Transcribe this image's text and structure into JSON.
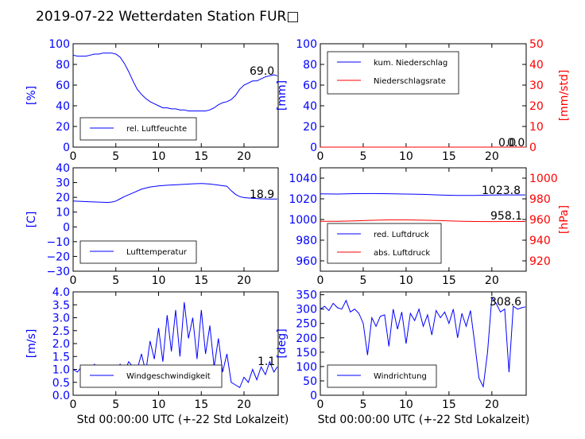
{
  "page": {
    "title": "2019-07-22 Wetterdaten Station FUR□"
  },
  "colors": {
    "left_axis": "#0000ff",
    "right_axis": "#ff0000",
    "series_blue": "#0000ff",
    "series_red": "#ff0000"
  },
  "chart_data": [
    {
      "type": "line",
      "ylabel": "[%]",
      "xlim": [
        0,
        24
      ],
      "ylim": [
        0,
        100
      ],
      "xticks": [
        "0",
        "5",
        "10",
        "15",
        "20"
      ],
      "yticks": [
        "0",
        "20",
        "40",
        "60",
        "80",
        "100"
      ],
      "legend": {
        "placement": "lower-left",
        "entries": [
          "rel. Luftfeuchte"
        ]
      },
      "value_label": "69.0",
      "series": [
        {
          "name": "rel. Luftfeuchte",
          "color": "#0000ff",
          "x": [
            0,
            0.5,
            1,
            1.5,
            2,
            2.5,
            3,
            3.5,
            4,
            4.5,
            5,
            5.5,
            6,
            6.5,
            7,
            7.5,
            8,
            8.5,
            9,
            9.5,
            10,
            10.5,
            11,
            11.5,
            12,
            12.5,
            13,
            13.5,
            14,
            14.5,
            15,
            15.5,
            16,
            16.5,
            17,
            17.5,
            18,
            18.5,
            19,
            19.5,
            20,
            20.5,
            21,
            21.5,
            22,
            22.5,
            23,
            23.5,
            23.9
          ],
          "y": [
            89,
            88,
            88,
            88,
            89,
            90,
            90,
            91,
            91,
            91,
            90,
            87,
            81,
            73,
            64,
            56,
            51,
            47,
            44,
            42,
            40,
            38,
            38,
            37,
            37,
            36,
            36,
            35,
            35,
            35,
            35,
            35,
            36,
            38,
            41,
            43,
            44,
            46,
            50,
            56,
            60,
            62,
            64,
            64,
            66,
            68,
            69,
            70,
            69
          ]
        }
      ]
    },
    {
      "type": "line",
      "ylabel": "[mm]",
      "ylabel_right": "[mm/std]",
      "xlim": [
        0,
        24
      ],
      "ylim": [
        0,
        100
      ],
      "ylim_right": [
        0,
        50
      ],
      "xticks": [
        "0",
        "5",
        "10",
        "15",
        "20"
      ],
      "yticks": [
        "0",
        "20",
        "40",
        "60",
        "80",
        "100"
      ],
      "yticks_right": [
        "0",
        "10",
        "20",
        "30",
        "40",
        "50"
      ],
      "legend": {
        "placement": "upper-left",
        "entries": [
          "kum. Niederschlag",
          "Niederschlagsrate"
        ]
      },
      "value_labels": [
        "0.0",
        "0.0"
      ],
      "series": [
        {
          "name": "kum. Niederschlag",
          "color": "#0000ff",
          "x": [
            0,
            24
          ],
          "y": [
            0,
            0
          ]
        },
        {
          "name": "Niederschlagsrate",
          "color": "#ff0000",
          "axis": "right",
          "x": [
            0,
            24
          ],
          "y": [
            0,
            0
          ]
        }
      ]
    },
    {
      "type": "line",
      "ylabel": "[C]",
      "xlim": [
        0,
        24
      ],
      "ylim": [
        -30,
        40
      ],
      "xticks": [
        "0",
        "5",
        "10",
        "15",
        "20"
      ],
      "yticks": [
        "−30",
        "−20",
        "−10",
        "0",
        "10",
        "20",
        "30",
        "40"
      ],
      "legend": {
        "placement": "lower-left",
        "entries": [
          "Lufttemperatur"
        ]
      },
      "value_label": "18.9",
      "series": [
        {
          "name": "Lufttemperatur",
          "color": "#0000ff",
          "x": [
            0,
            1,
            2,
            3,
            4,
            4.5,
            5,
            5.5,
            6,
            7,
            8,
            9,
            10,
            11,
            12,
            13,
            14,
            15,
            16,
            17,
            18,
            18.5,
            19,
            19.5,
            20,
            21,
            22,
            23,
            23.9
          ],
          "y": [
            17.5,
            17.2,
            17,
            16.8,
            16.6,
            16.8,
            17.5,
            19,
            20.5,
            23,
            25.5,
            27,
            27.8,
            28.2,
            28.5,
            28.8,
            29.2,
            29.4,
            29,
            28.3,
            27.5,
            24.5,
            22,
            20.5,
            19.8,
            19.3,
            19,
            18.9,
            18.9
          ]
        }
      ]
    },
    {
      "type": "line",
      "ylabel_right": "[hPa]",
      "xlim": [
        0,
        24
      ],
      "ylim": [
        950,
        1050
      ],
      "ylim_right": [
        910,
        1010
      ],
      "xticks": [
        "0",
        "5",
        "10",
        "15",
        "20"
      ],
      "yticks": [
        "960",
        "980",
        "1000",
        "1020",
        "1040"
      ],
      "yticks_right": [
        "920",
        "940",
        "960",
        "980",
        "1000"
      ],
      "legend": {
        "placement": "lower-left",
        "entries": [
          "red. Luftdruck",
          "abs. Luftdruck"
        ]
      },
      "value_labels": [
        "1023.8",
        "958.1"
      ],
      "series": [
        {
          "name": "red. Luftdruck",
          "color": "#0000ff",
          "x": [
            0,
            2,
            4,
            6,
            8,
            10,
            12,
            14,
            16,
            18,
            20,
            22,
            23.9
          ],
          "y": [
            1024.8,
            1024.6,
            1025.0,
            1025.1,
            1024.9,
            1024.6,
            1024.3,
            1023.7,
            1023.2,
            1023.3,
            1023.6,
            1023.8,
            1023.8
          ]
        },
        {
          "name": "abs. Luftdruck",
          "color": "#ff0000",
          "axis": "right",
          "x": [
            0,
            2,
            4,
            6,
            8,
            10,
            12,
            14,
            16,
            18,
            20,
            22,
            23.9
          ],
          "y": [
            958.2,
            958.3,
            958.7,
            959.2,
            959.6,
            959.6,
            959.3,
            958.9,
            958.4,
            958.1,
            958.0,
            958.1,
            958.1
          ]
        }
      ]
    },
    {
      "type": "line",
      "ylabel": "[m/s]",
      "xlim": [
        0,
        24
      ],
      "ylim": [
        0,
        4
      ],
      "xticks": [
        "0",
        "5",
        "10",
        "15",
        "20"
      ],
      "yticks": [
        "0.0",
        "0.5",
        "1.0",
        "1.5",
        "2.0",
        "2.5",
        "3.0",
        "3.5",
        "4.0"
      ],
      "legend": {
        "placement": "lower-left",
        "entries": [
          "Windgeschwindigkeit"
        ]
      },
      "value_label": "1.1",
      "series": [
        {
          "name": "Windgeschwindigkeit",
          "color": "#0000ff",
          "x": [
            0,
            0.5,
            1,
            1.5,
            2,
            2.5,
            3,
            3.5,
            4,
            4.5,
            5,
            5.5,
            6,
            6.5,
            7,
            7.5,
            8,
            8.5,
            9,
            9.5,
            10,
            10.5,
            11,
            11.5,
            12,
            12.5,
            13,
            13.5,
            14,
            14.5,
            15,
            15.5,
            16,
            16.5,
            17,
            17.5,
            18,
            18.5,
            19,
            19.5,
            20,
            20.5,
            21,
            21.5,
            22,
            22.5,
            23,
            23.5,
            23.9
          ],
          "y": [
            1.0,
            0.9,
            1.1,
            0.8,
            1.0,
            1.2,
            0.7,
            1.0,
            0.9,
            1.1,
            0.8,
            1.2,
            0.9,
            1.3,
            1.1,
            1.0,
            1.6,
            0.9,
            2.1,
            1.4,
            2.6,
            1.3,
            3.1,
            1.7,
            3.3,
            1.5,
            3.6,
            2.2,
            3.0,
            1.4,
            3.3,
            1.6,
            2.7,
            1.1,
            2.2,
            0.9,
            1.6,
            0.5,
            0.4,
            0.3,
            0.7,
            0.5,
            1.0,
            0.6,
            1.1,
            0.8,
            1.3,
            0.9,
            1.1
          ]
        }
      ]
    },
    {
      "type": "line",
      "ylabel": "[deg]",
      "xlim": [
        0,
        24
      ],
      "ylim": [
        0,
        360
      ],
      "xticks": [
        "0",
        "5",
        "10",
        "15",
        "20"
      ],
      "yticks": [
        "0",
        "50",
        "100",
        "150",
        "200",
        "250",
        "300",
        "350"
      ],
      "legend": {
        "placement": "lower-left",
        "entries": [
          "Windrichtung"
        ]
      },
      "value_label": "308.6",
      "series": [
        {
          "name": "Windrichtung",
          "color": "#0000ff",
          "x": [
            0,
            0.5,
            1,
            1.5,
            2,
            2.5,
            3,
            3.5,
            4,
            4.5,
            5,
            5.5,
            6,
            6.5,
            7,
            7.5,
            8,
            8.5,
            9,
            9.5,
            10,
            10.5,
            11,
            11.5,
            12,
            12.5,
            13,
            13.5,
            14,
            14.5,
            15,
            15.5,
            16,
            16.5,
            17,
            17.5,
            18,
            18.5,
            19,
            19.5,
            20,
            20.5,
            21,
            21.5,
            22,
            22.5,
            23,
            23.5,
            23.9
          ],
          "y": [
            300,
            310,
            295,
            320,
            305,
            300,
            330,
            290,
            300,
            285,
            250,
            140,
            270,
            240,
            275,
            280,
            170,
            300,
            230,
            290,
            180,
            285,
            260,
            300,
            240,
            280,
            210,
            295,
            270,
            290,
            250,
            300,
            200,
            285,
            240,
            295,
            180,
            60,
            30,
            150,
            340,
            320,
            290,
            300,
            80,
            310,
            300,
            305,
            308
          ]
        }
      ]
    }
  ],
  "xlabels": {
    "bottom_left": "Std 00:00:00 UTC (+-22 Std Lokalzeit)",
    "bottom_right": "Std 00:00:00 UTC (+-22 Std Lokalzeit)"
  }
}
